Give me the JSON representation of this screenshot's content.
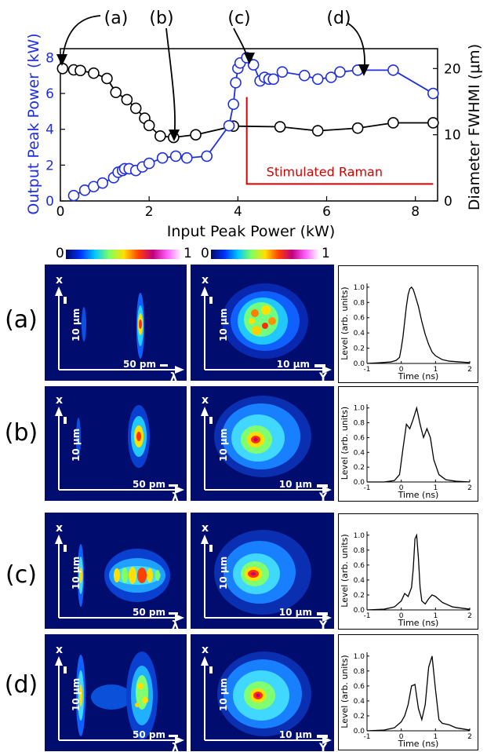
{
  "colors": {
    "output_series": "#1f2fe0",
    "diameter_series": "#000000",
    "raman_marker": "#d60000",
    "panel_background": "#000c6e"
  },
  "chart_data": [
    {
      "type": "scatter",
      "xlabel": "Input Peak Power (kW)",
      "ylabel": "Output Peak Power (kW)",
      "y2label": "Diameter FWHMI (μm)",
      "xlim": [
        0,
        8.5
      ],
      "ylim": [
        0,
        8.5
      ],
      "y2lim": [
        0,
        23
      ],
      "xticks": [
        0,
        2,
        4,
        6,
        8
      ],
      "yticks": [
        0,
        2,
        4,
        6,
        8
      ],
      "y2ticks": [
        0,
        10,
        20
      ],
      "grid": false,
      "series": [
        {
          "axis": "left",
          "color": "#1f2fe0",
          "x": [
            0.3,
            0.55,
            0.75,
            0.95,
            1.2,
            1.3,
            1.4,
            1.45,
            1.55,
            1.7,
            1.85,
            2.0,
            2.3,
            2.6,
            2.85,
            3.3,
            3.8,
            3.9,
            3.95,
            4.0,
            4.05,
            4.2,
            4.35,
            4.5,
            4.6,
            4.7,
            4.8,
            5.0,
            5.5,
            5.8,
            6.1,
            6.3,
            6.7,
            7.5,
            8.4
          ],
          "y": [
            0.3,
            0.6,
            0.8,
            1.0,
            1.3,
            1.6,
            1.7,
            1.8,
            1.8,
            1.7,
            1.9,
            2.1,
            2.4,
            2.5,
            2.4,
            2.5,
            4.2,
            5.4,
            6.6,
            7.4,
            7.7,
            8.0,
            7.6,
            6.7,
            6.9,
            6.8,
            6.8,
            7.2,
            7.0,
            6.8,
            6.9,
            7.2,
            7.3,
            7.3,
            6.0
          ]
        },
        {
          "axis": "right",
          "color": "#000000",
          "x": [
            0.05,
            0.3,
            0.45,
            0.75,
            1.05,
            1.25,
            1.5,
            1.7,
            1.9,
            2.0,
            2.25,
            2.55,
            3.05,
            3.9,
            4.95,
            5.8,
            6.7,
            7.5,
            8.4
          ],
          "y": [
            20.0,
            19.8,
            19.7,
            19.3,
            18.5,
            16.4,
            15.3,
            14.0,
            12.5,
            11.4,
            9.8,
            9.6,
            10.0,
            11.3,
            11.2,
            10.6,
            11.0,
            11.8,
            11.8
          ]
        }
      ],
      "annotations": [
        {
          "label": "(a)",
          "points_to_x": 0.05
        },
        {
          "label": "(b)",
          "points_to_x": 2.5
        },
        {
          "label": "(c)",
          "points_to_x": 4.2
        },
        {
          "label": "(d)",
          "points_to_x": 6.7
        },
        {
          "label": "Stimulated Raman",
          "start_x": 4.2,
          "end_x": 8.4,
          "top_y": 5.8,
          "bottom_y": 0.95
        }
      ]
    },
    {
      "type": "line",
      "row": "(a)",
      "xlabel": "Time (ns)",
      "ylabel": "Level (arb. units)",
      "xlim": [
        -1,
        2
      ],
      "ylim": [
        0,
        1.05
      ],
      "xticks": [
        -1,
        0,
        1,
        2
      ],
      "yticks": [
        0.0,
        0.2,
        0.4,
        0.6,
        0.8,
        1.0
      ],
      "x": [
        -1,
        -0.6,
        -0.3,
        -0.15,
        -0.05,
        0.0,
        0.05,
        0.1,
        0.15,
        0.2,
        0.25,
        0.3,
        0.35,
        0.4,
        0.5,
        0.6,
        0.7,
        0.8,
        0.9,
        1.0,
        1.2,
        1.4,
        1.7,
        2.0
      ],
      "y": [
        0.0,
        0.01,
        0.02,
        0.04,
        0.08,
        0.2,
        0.35,
        0.55,
        0.75,
        0.9,
        0.98,
        1.0,
        0.97,
        0.9,
        0.75,
        0.55,
        0.38,
        0.25,
        0.15,
        0.1,
        0.05,
        0.03,
        0.02,
        0.01
      ]
    },
    {
      "type": "line",
      "row": "(b)",
      "xlabel": "Time (ns)",
      "ylabel": "Level (arb. units)",
      "xlim": [
        -1,
        2
      ],
      "ylim": [
        0,
        1.05
      ],
      "xticks": [
        -1,
        0,
        1,
        2
      ],
      "yticks": [
        0.0,
        0.2,
        0.4,
        0.6,
        0.8,
        1.0
      ],
      "x": [
        -1,
        -0.5,
        -0.2,
        -0.05,
        0.05,
        0.15,
        0.25,
        0.35,
        0.45,
        0.55,
        0.65,
        0.75,
        0.85,
        0.95,
        1.1,
        1.3,
        1.6,
        2.0
      ],
      "y": [
        0.0,
        0.0,
        0.02,
        0.1,
        0.45,
        0.78,
        0.72,
        0.85,
        1.0,
        0.78,
        0.6,
        0.72,
        0.6,
        0.3,
        0.1,
        0.03,
        0.01,
        0.0
      ]
    },
    {
      "type": "line",
      "row": "(c)",
      "xlabel": "Time (ns)",
      "ylabel": "Level (arb. units)",
      "xlim": [
        -1,
        2
      ],
      "ylim": [
        0,
        1.05
      ],
      "xticks": [
        -1,
        0,
        1,
        2
      ],
      "yticks": [
        0.0,
        0.2,
        0.4,
        0.6,
        0.8,
        1.0
      ],
      "x": [
        -1,
        -0.5,
        -0.2,
        0.0,
        0.1,
        0.2,
        0.3,
        0.35,
        0.4,
        0.45,
        0.5,
        0.55,
        0.6,
        0.7,
        0.8,
        0.9,
        1.0,
        1.2,
        1.5,
        2.0
      ],
      "y": [
        0.0,
        0.01,
        0.04,
        0.12,
        0.22,
        0.18,
        0.3,
        0.55,
        0.95,
        1.0,
        0.7,
        0.3,
        0.12,
        0.08,
        0.15,
        0.2,
        0.18,
        0.1,
        0.04,
        0.01
      ]
    },
    {
      "type": "line",
      "row": "(d)",
      "xlabel": "Time (ns)",
      "ylabel": "Level (arb. units)",
      "xlim": [
        -1,
        2
      ],
      "ylim": [
        0,
        1.05
      ],
      "xticks": [
        -1,
        0,
        1,
        2
      ],
      "yticks": [
        0.0,
        0.2,
        0.4,
        0.6,
        0.8,
        1.0
      ],
      "x": [
        -1,
        -0.5,
        -0.2,
        0.0,
        0.1,
        0.2,
        0.3,
        0.4,
        0.5,
        0.6,
        0.7,
        0.8,
        0.9,
        1.0,
        1.1,
        1.2,
        1.4,
        1.6,
        2.0
      ],
      "y": [
        0.0,
        0.01,
        0.04,
        0.12,
        0.2,
        0.35,
        0.6,
        0.62,
        0.3,
        0.15,
        0.35,
        0.85,
        1.0,
        0.55,
        0.15,
        0.1,
        0.08,
        0.04,
        0.01
      ]
    }
  ],
  "colorbars": [
    {
      "min_label": "0",
      "max_label": "1"
    },
    {
      "min_label": "0",
      "max_label": "1"
    }
  ],
  "rows": [
    {
      "label": "(a)",
      "spectrum": {
        "x_axis": "x",
        "scale": "10 μm",
        "wl_scale": "50 pm",
        "wl_axis": "λ"
      },
      "beam": {
        "x_axis": "x",
        "scale_v": "10 μm",
        "scale_h": "10 μm",
        "y_axis": "Y"
      }
    },
    {
      "label": "(b)",
      "spectrum": {
        "x_axis": "x",
        "scale": "10 μm",
        "wl_scale": "50 pm",
        "wl_axis": "λ"
      },
      "beam": {
        "x_axis": "x",
        "scale_v": "10 μm",
        "scale_h": "10 μm",
        "y_axis": "Y"
      }
    },
    {
      "label": "(c)",
      "spectrum": {
        "x_axis": "x",
        "scale": "10 μm",
        "wl_scale": "50 pm",
        "wl_axis": "λ"
      },
      "beam": {
        "x_axis": "x",
        "scale_v": "10 μm",
        "scale_h": "10 μm",
        "y_axis": "Y"
      }
    },
    {
      "label": "(d)",
      "spectrum": {
        "x_axis": "x",
        "scale": "10 μm",
        "wl_scale": "50 pm",
        "wl_axis": "λ"
      },
      "beam": {
        "x_axis": "x",
        "scale_v": "10 μm",
        "scale_h": "10 μm",
        "y_axis": "Y"
      }
    }
  ]
}
